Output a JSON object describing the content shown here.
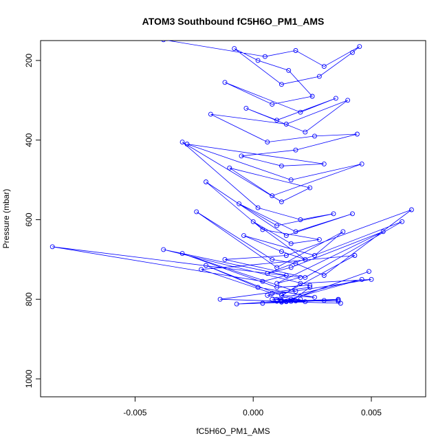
{
  "chart_data": {
    "type": "line",
    "title": "ATOM3 Southbound fC5H6O_PM1_AMS",
    "xlabel": "fC5H6O_PM1_AMS",
    "ylabel": "Pressure (mbar)",
    "xlim": [
      -0.009,
      0.0073
    ],
    "ylim": [
      150,
      1045
    ],
    "y_reversed": true,
    "xticks": [
      -0.005,
      0.0,
      0.005
    ],
    "xtick_labels": [
      "-0.005",
      "0.000",
      "0.005"
    ],
    "yticks": [
      200,
      400,
      600,
      800,
      1000
    ],
    "ytick_labels": [
      "200",
      "400",
      "600",
      "800",
      "1000"
    ],
    "grid": false,
    "legend": "none",
    "colors": {
      "series": "#0000ff",
      "axis": "#000000"
    },
    "series": [
      {
        "marker": "open-circle",
        "x": [
          -0.0038,
          0.0005,
          0.0018,
          0.003,
          0.0045,
          0.0042,
          0.0028,
          0.0012,
          -0.0008,
          0.0002,
          0.0015,
          0.0025,
          0.0008,
          -0.0012,
          0.002,
          0.0035,
          0.001,
          -0.0003,
          0.0022,
          0.004,
          0.0014,
          -0.0018,
          0.0006,
          0.0026,
          0.0044,
          0.0018,
          -0.0005,
          0.0012,
          0.003,
          -0.0028,
          0.0016,
          0.0046,
          0.0008,
          -0.001,
          0.0024,
          0.0012,
          -0.003,
          0.0002,
          0.002,
          0.0034,
          0.001,
          -0.0006,
          0.0018,
          0.0042,
          0.0014,
          -0.002,
          0.0004,
          0.0028,
          0.0016,
          0.0,
          0.0022,
          0.0012,
          -0.0004,
          0.0026,
          0.0038,
          0.001,
          -0.0024,
          0.0008,
          0.0018,
          0.003,
          0.0067,
          0.0014,
          -0.0012,
          0.0022,
          0.0063,
          0.0006,
          0.0016,
          0.0055,
          0.001,
          0.002,
          -0.0085,
          0.0004,
          0.0014,
          -0.0038,
          0.0024,
          0.001,
          -0.003,
          0.0018,
          0.0008,
          -0.0022,
          0.0043,
          0.0012,
          0.0026,
          0.0002,
          -0.002,
          0.0016,
          0.0049,
          0.0014,
          0.0006,
          0.005,
          0.002,
          0.001,
          0.0046,
          0.0012,
          -0.0014,
          0.0024,
          0.0016,
          0.0004,
          0.002,
          0.0012,
          0.0036,
          0.0008,
          0.0018,
          0.0036,
          0.0014,
          0.0037,
          0.001,
          -0.0007,
          0.0022,
          0.0016,
          0.003,
          0.0012,
          0.0036
        ],
        "y": [
          148,
          190,
          175,
          215,
          165,
          180,
          240,
          260,
          170,
          200,
          225,
          290,
          310,
          255,
          330,
          295,
          350,
          320,
          380,
          300,
          360,
          335,
          405,
          390,
          385,
          425,
          440,
          465,
          460,
          410,
          500,
          460,
          540,
          470,
          520,
          555,
          405,
          570,
          600,
          585,
          615,
          560,
          630,
          585,
          640,
          505,
          625,
          650,
          660,
          605,
          700,
          680,
          640,
          690,
          630,
          720,
          580,
          700,
          710,
          740,
          575,
          690,
          700,
          745,
          605,
          735,
          720,
          630,
          760,
          745,
          668,
          755,
          740,
          675,
          765,
          770,
          685,
          780,
          785,
          725,
          690,
          790,
          795,
          770,
          715,
          800,
          730,
          805,
          790,
          750,
          760,
          800,
          750,
          805,
          800,
          770,
          805,
          810,
          800,
          803,
          805,
          800,
          804,
          800,
          806,
          810,
          805,
          812,
          806,
          805,
          803,
          807,
          802
        ]
      }
    ]
  }
}
